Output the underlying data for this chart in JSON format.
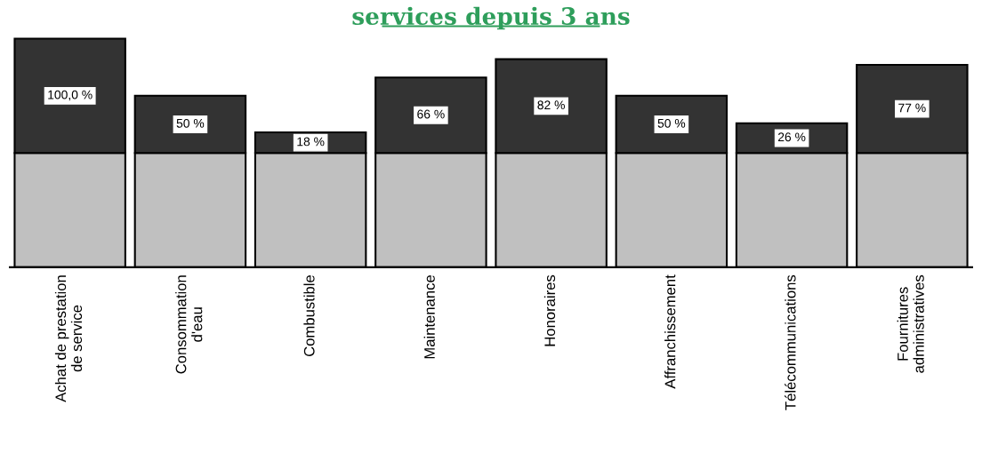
{
  "chart_data": {
    "type": "bar",
    "title": "services depuis 3 ans",
    "stacked": true,
    "tick_labels": "x",
    "categories": [
      "Achat de prestation\nde service",
      "Consommation\nd'eau",
      "Combustible",
      "Maintenance",
      "Honoraires",
      "Affranchissement",
      "Télécommunications",
      "Fournitures\nadministratives"
    ],
    "series": [
      {
        "color": "#c0c0c0",
        "values": [
          100,
          100,
          100,
          100,
          100,
          100,
          100,
          100
        ]
      },
      {
        "color": "#333333",
        "values": [
          100,
          50,
          18,
          66,
          82,
          50,
          26,
          77
        ],
        "value_labels": [
          "100,0 %",
          "50 %",
          "18 %",
          "66 %",
          "82 %",
          "50 %",
          "26 %",
          "77 %"
        ]
      }
    ]
  }
}
